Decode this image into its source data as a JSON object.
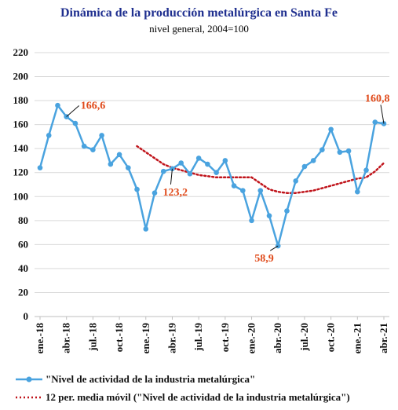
{
  "chart_data": {
    "type": "line",
    "title": "Dinámica de la producción metalúrgica en Santa Fe",
    "subtitle": "nivel general, 2004=100",
    "ylim": [
      0,
      220
    ],
    "yticks": [
      0,
      20,
      40,
      60,
      80,
      100,
      120,
      140,
      160,
      180,
      200,
      220
    ],
    "grid": "horizontal",
    "legend_position": "bottom",
    "x_tick_labels": [
      "ene.-18",
      "abr.-18",
      "jul.-18",
      "oct.-18",
      "ene.-19",
      "abr.-19",
      "jul.-19",
      "oct.-19",
      "ene.-20",
      "abr.-20",
      "jul.-20",
      "oct.-20",
      "ene.-21",
      "abr.-21"
    ],
    "x": [
      "ene.-18",
      "feb.-18",
      "mar.-18",
      "abr.-18",
      "may.-18",
      "jun.-18",
      "jul.-18",
      "ago.-18",
      "sep.-18",
      "oct.-18",
      "nov.-18",
      "dic.-18",
      "ene.-19",
      "feb.-19",
      "mar.-19",
      "abr.-19",
      "may.-19",
      "jun.-19",
      "jul.-19",
      "ago.-19",
      "sep.-19",
      "oct.-19",
      "nov.-19",
      "dic.-19",
      "ene.-20",
      "feb.-20",
      "mar.-20",
      "abr.-20",
      "may.-20",
      "jun.-20",
      "jul.-20",
      "ago.-20",
      "sep.-20",
      "oct.-20",
      "nov.-20",
      "dic.-20",
      "ene.-21",
      "feb.-21",
      "mar.-21",
      "abr.-21"
    ],
    "series": [
      {
        "name": "\"Nivel de actividad de la industria metalúrgica\"",
        "color": "#4aa3df",
        "style": "solid-markers",
        "values": [
          124,
          151,
          176,
          166.6,
          161,
          142,
          139,
          151,
          127,
          135,
          124,
          106,
          73,
          103,
          121,
          123.2,
          128,
          119,
          132,
          127,
          120,
          130,
          109,
          105,
          80,
          105,
          84,
          58.9,
          88,
          113,
          125,
          130,
          139,
          156,
          137,
          138,
          104,
          122,
          162,
          160.8
        ]
      },
      {
        "name": "12 per. media móvil (\"Nivel de actividad de la industria metalúrgica\")",
        "color": "#c0141b",
        "style": "dotted",
        "values": [
          null,
          null,
          null,
          null,
          null,
          null,
          null,
          null,
          null,
          null,
          null,
          142,
          137,
          132,
          127,
          124,
          122,
          120,
          118,
          117,
          116,
          116,
          116,
          116,
          116,
          111,
          106,
          104,
          103,
          103,
          104,
          105,
          107,
          109,
          111,
          113,
          115,
          116,
          121,
          128
        ]
      }
    ],
    "annotations": [
      {
        "text": "166,6",
        "at_index": 3
      },
      {
        "text": "123,2",
        "at_index": 15
      },
      {
        "text": "58,9",
        "at_index": 27
      },
      {
        "text": "160,8",
        "at_index": 39
      }
    ]
  }
}
